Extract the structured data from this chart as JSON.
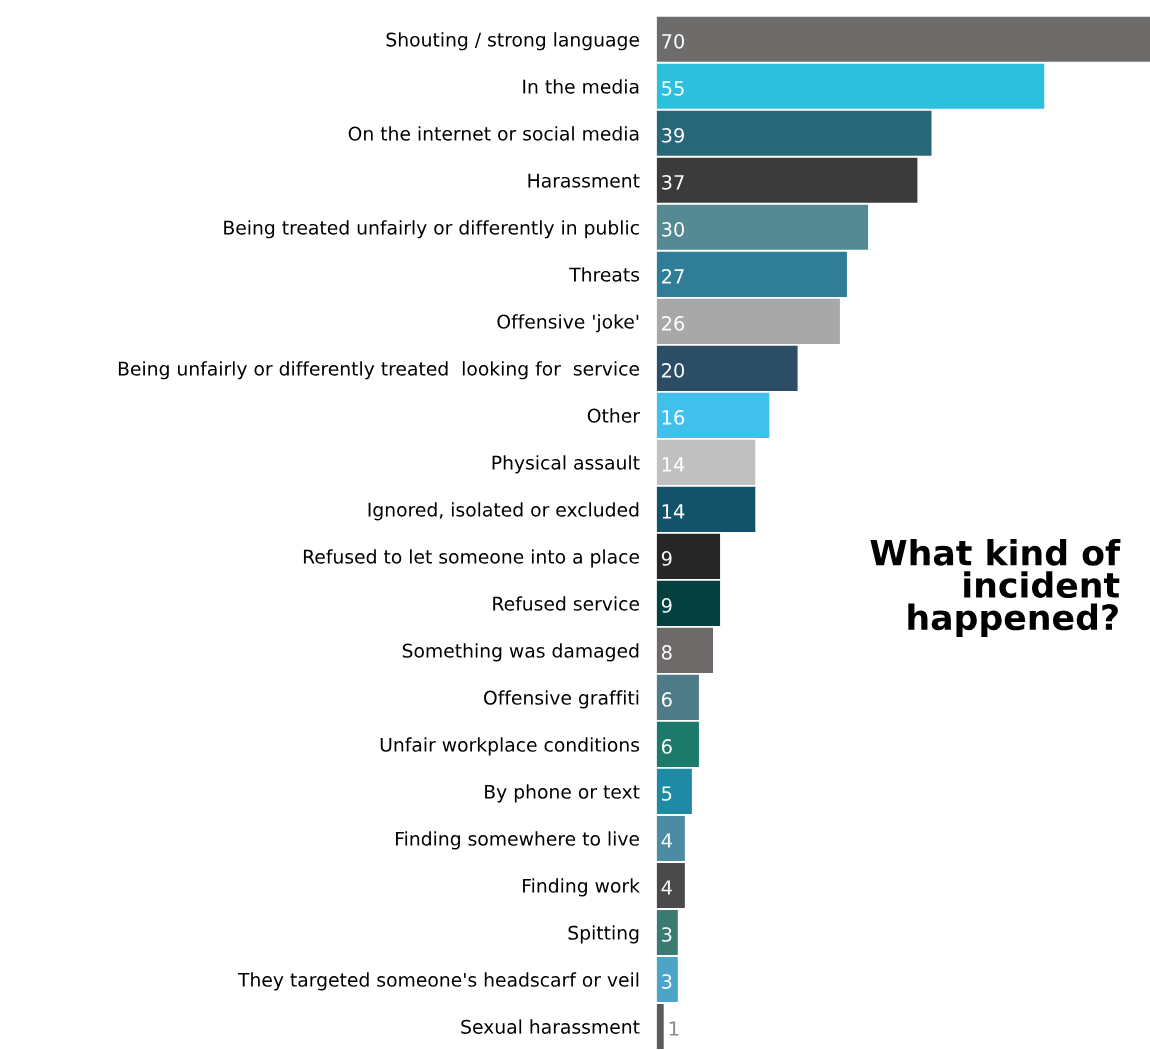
{
  "chart_data": {
    "type": "bar",
    "orientation": "horizontal",
    "title": "What kind of incident happened?",
    "data_labels": true,
    "tick_labels": "y",
    "categories": [
      "Shouting / strong language",
      "In the media",
      "On the internet or social media",
      "Harassment",
      "Being treated unfairly or differently in public",
      "Threats",
      "Offensive 'joke'",
      "Being unfairly or differently treated  looking for  service",
      "Other",
      "Physical assault",
      "Ignored, isolated or excluded",
      "Refused to let someone into a place",
      "Refused service",
      "Something was damaged",
      "Offensive graffiti",
      "Unfair workplace conditions",
      "By phone or text",
      "Finding somewhere to live",
      "Finding work",
      "Spitting",
      "They targeted someone's headscarf or veil",
      "Sexual harassment"
    ],
    "values": [
      70,
      55,
      39,
      37,
      30,
      27,
      26,
      20,
      16,
      14,
      14,
      9,
      9,
      8,
      6,
      6,
      5,
      4,
      4,
      3,
      3,
      1
    ],
    "colors": [
      "#6d6c6b",
      "#2cc0dc",
      "#276878",
      "#3b3b3b",
      "#568a93",
      "#2f7d97",
      "#a8a8a8",
      "#2b4e66",
      "#40c0ea",
      "#c0c0c0",
      "#12536a",
      "#262626",
      "#04403f",
      "#6e6a6a",
      "#4f7b86",
      "#1d7a6b",
      "#1f8aa3",
      "#4d8aa3",
      "#4a4a4a",
      "#3a7a72",
      "#4aa5c7",
      "#5a5a5a"
    ]
  }
}
